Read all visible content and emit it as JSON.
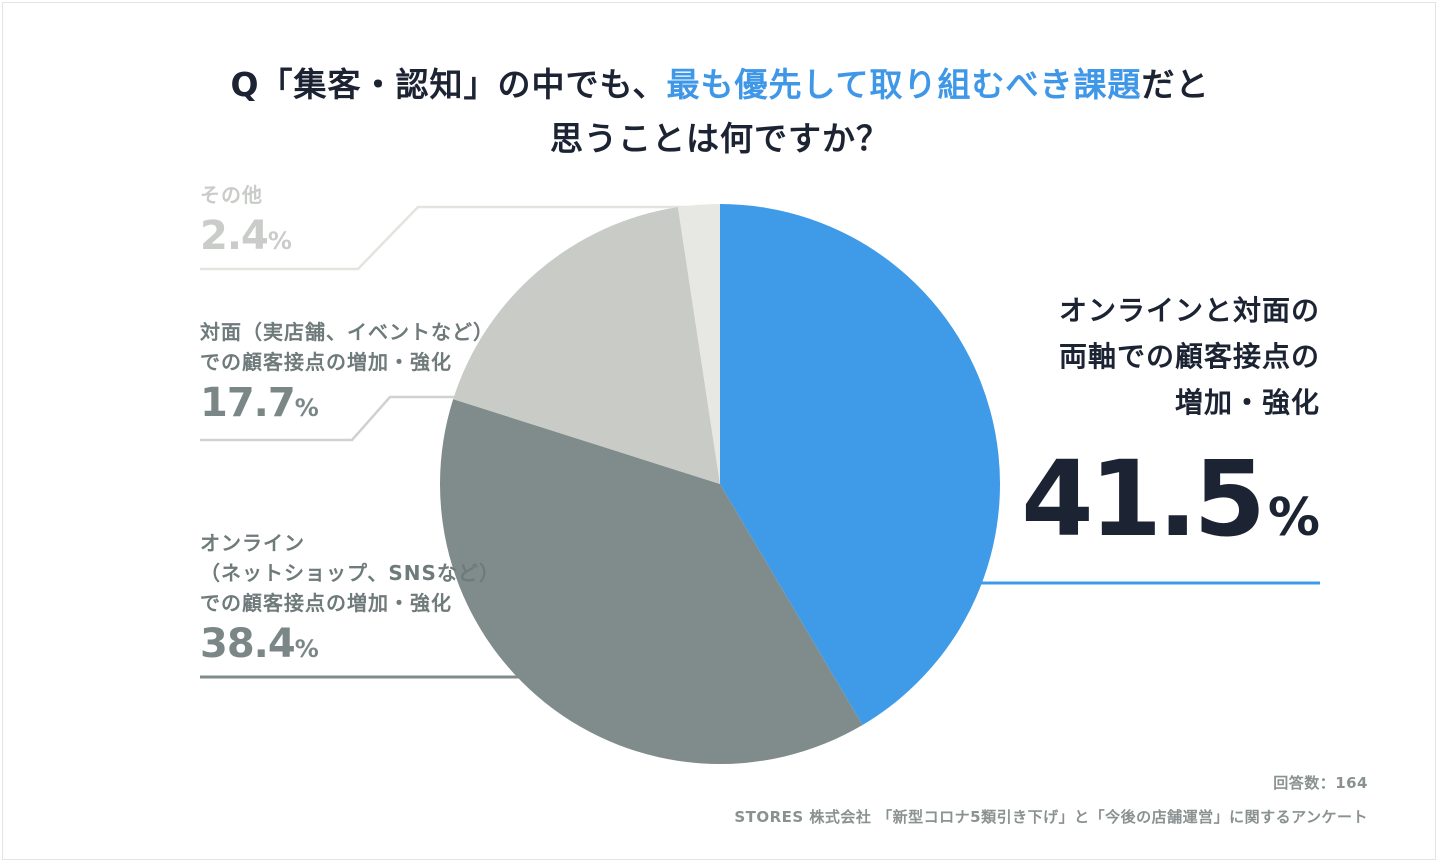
{
  "chart_data": {
    "type": "pie",
    "title": {
      "line1_prefix": "Q「集客・認知」の中でも、",
      "line1_highlight": "最も優先して取り組むべき課題",
      "line1_suffix": "だと",
      "line2": "思うことは何ですか？"
    },
    "slices": [
      {
        "label": "オンラインと対面の両軸での顧客接点の増加・強化",
        "label_lines": [
          "オンラインと対面の",
          "両軸での顧客接点の",
          "増加・強化"
        ],
        "value": 41.5,
        "color": "#3f9be8"
      },
      {
        "label": "オンライン（ネットショップ、SNSなど）での顧客接点の増加・強化",
        "label_lines": [
          "オンライン",
          "（ネットショップ、SNSなど）",
          "での顧客接点の増加・強化"
        ],
        "value": 38.4,
        "color": "#7f8c8b"
      },
      {
        "label": "対面（実店舗、イベントなど）での顧客接点の増加・強化",
        "label_lines": [
          "対面（実店舗、イベントなど）",
          "での顧客接点の増加・強化"
        ],
        "value": 17.7,
        "color": "#c8cbc6"
      },
      {
        "label": "その他",
        "label_lines": [
          "その他"
        ],
        "value": 2.4,
        "color": "#e7e7e4"
      }
    ],
    "percent_symbol": "%"
  },
  "footnotes": {
    "respondents": "回答数：164",
    "source": "STORES 株式会社 「新型コロナ5類引き下げ」と「今後の店舗運営」に関するアンケート"
  }
}
